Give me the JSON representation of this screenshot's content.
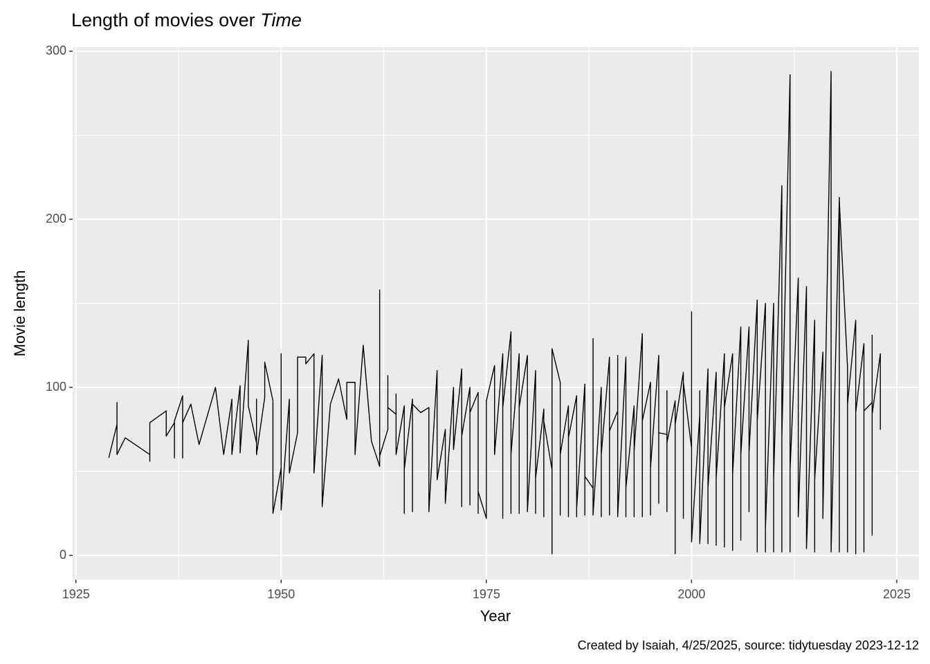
{
  "chart_data": {
    "type": "line",
    "title": "Length of movies over",
    "title_italic": "Time",
    "x_label": "Year",
    "y_label": "Movie length",
    "caption": "Created by Isaiah, 4/25/2025, source: tidytuesday 2023-12-12",
    "color": "#000000",
    "grid": true,
    "xlim": [
      1924.6,
      2027.7
    ],
    "ylim": [
      -14.4,
      302.5
    ],
    "xticks": [
      1925,
      1950,
      1975,
      2000,
      2025
    ],
    "yticks": [
      0,
      100,
      200,
      300
    ],
    "x_minor_grid": [
      1937.5,
      1962.5,
      1987.5,
      2012.5
    ],
    "y_minor_grid": [
      50,
      150,
      250
    ],
    "x": [
      1929,
      1930,
      1930,
      1930,
      1931,
      1934,
      1934,
      1934,
      1936,
      1936,
      1937,
      1937,
      1937,
      1938,
      1938,
      1938,
      1939,
      1940,
      1942,
      1943,
      1944,
      1944,
      1945,
      1945,
      1946,
      1946,
      1947,
      1947,
      1947,
      1948,
      1948,
      1949,
      1949,
      1950,
      1950,
      1950,
      1951,
      1951,
      1952,
      1952,
      1952,
      1953,
      1953,
      1954,
      1954,
      1955,
      1955,
      1956,
      1957,
      1958,
      1958,
      1959,
      1959,
      1960,
      1961,
      1962,
      1962,
      1962,
      1963,
      1963,
      1963,
      1964,
      1964,
      1964,
      1965,
      1965,
      1965,
      1966,
      1966,
      1966,
      1967,
      1968,
      1968,
      1969,
      1969,
      1970,
      1970,
      1971,
      1971,
      1972,
      1972,
      1972,
      1973,
      1973,
      1973,
      1974,
      1974,
      1974,
      1975,
      1975,
      1976,
      1976,
      1977,
      1977,
      1977,
      1978,
      1978,
      1978,
      1979,
      1979,
      1979,
      1980,
      1980,
      1981,
      1981,
      1981,
      1982,
      1982,
      1982,
      1983,
      1983,
      1983,
      1984,
      1984,
      1984,
      1985,
      1985,
      1985,
      1986,
      1986,
      1986,
      1987,
      1987,
      1987,
      1988,
      1988,
      1988,
      1989,
      1989,
      1989,
      1990,
      1990,
      1990,
      1991,
      1991,
      1991,
      1992,
      1992,
      1992,
      1993,
      1993,
      1993,
      1994,
      1994,
      1994,
      1995,
      1995,
      1995,
      1996,
      1996,
      1996,
      1997,
      1997,
      1997,
      1997,
      1998,
      1998,
      1998,
      1999,
      1999,
      1999,
      2000,
      2000,
      2000,
      2001,
      2001,
      2001,
      2002,
      2002,
      2002,
      2003,
      2003,
      2003,
      2004,
      2004,
      2004,
      2005,
      2005,
      2005,
      2006,
      2006,
      2006,
      2007,
      2007,
      2007,
      2008,
      2008,
      2008,
      2009,
      2009,
      2009,
      2010,
      2010,
      2010,
      2011,
      2011,
      2011,
      2012,
      2012,
      2012,
      2013,
      2013,
      2014,
      2014,
      2015,
      2015,
      2015,
      2016,
      2016,
      2017,
      2017,
      2018,
      2018,
      2018,
      2019,
      2019,
      2019,
      2020,
      2020,
      2020,
      2021,
      2021,
      2021,
      2021,
      2022,
      2022,
      2022,
      2022,
      2023,
      2023,
      2023
    ],
    "values": [
      58,
      78,
      91,
      60,
      70,
      60,
      56,
      79,
      86,
      71,
      79,
      58,
      80,
      95,
      58,
      79,
      90,
      66,
      100,
      60,
      93,
      60,
      101,
      61,
      128,
      89,
      67,
      93,
      60,
      94,
      115,
      92,
      25,
      52,
      120,
      27,
      93,
      49,
      73,
      80,
      118,
      118,
      114,
      120,
      49,
      119,
      29,
      90,
      105,
      81,
      103,
      103,
      60,
      125,
      68,
      53,
      158,
      59,
      75,
      107,
      88,
      84,
      96,
      60,
      89,
      25,
      51,
      93,
      26,
      90,
      85,
      88,
      26,
      110,
      45,
      75,
      31,
      100,
      63,
      111,
      29,
      71,
      100,
      30,
      85,
      97,
      25,
      38,
      22,
      92,
      113,
      60,
      120,
      22,
      88,
      133,
      25,
      60,
      120,
      25,
      88,
      119,
      26,
      110,
      25,
      46,
      87,
      23,
      80,
      51,
      1,
      123,
      103,
      24,
      60,
      89,
      23,
      70,
      95,
      23,
      28,
      102,
      24,
      47,
      40,
      129,
      24,
      100,
      23,
      60,
      118,
      24,
      74,
      86,
      119,
      23,
      118,
      23,
      40,
      89,
      23,
      62,
      132,
      23,
      80,
      103,
      24,
      52,
      119,
      31,
      73,
      72,
      98,
      26,
      67,
      92,
      1,
      78,
      109,
      22,
      103,
      64,
      145,
      8,
      84,
      98,
      7,
      111,
      7,
      40,
      109,
      6,
      46,
      120,
      5,
      88,
      120,
      3,
      48,
      136,
      9,
      60,
      136,
      26,
      61,
      152,
      2,
      80,
      150,
      2,
      16,
      150,
      2,
      45,
      220,
      2,
      70,
      286,
      2,
      51,
      165,
      23,
      160,
      4,
      140,
      2,
      45,
      121,
      22,
      288,
      2,
      213,
      2,
      211,
      112,
      2,
      90,
      140,
      1,
      85,
      126,
      2,
      105,
      86,
      91,
      12,
      131,
      84,
      120,
      75,
      94
    ]
  }
}
